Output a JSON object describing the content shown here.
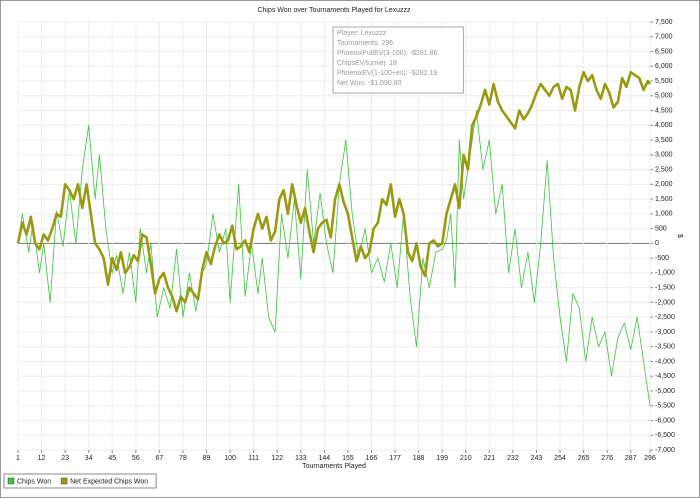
{
  "chart_data": {
    "type": "line",
    "title": "Chips Won over Tournaments Played for  Lexuzzz",
    "x_label": "Tournaments Played",
    "y_label": "$",
    "annotations": [
      "Player: Lexuzzz",
      "Tournaments: 296",
      "PhoenixPullEV(3-100): -$281.86",
      "ChipsEV/turniej: 18",
      "PhoenixEV(1-100+es): -$282.19",
      "Net Won: -$1,090.80"
    ],
    "legend": "bottom-left",
    "grid": true,
    "xlim": [
      1,
      296
    ],
    "xticks": [
      1,
      12,
      23,
      34,
      45,
      56,
      67,
      78,
      89,
      100,
      111,
      122,
      133,
      144,
      155,
      166,
      177,
      188,
      199,
      210,
      221,
      232,
      243,
      254,
      265,
      276,
      287,
      296
    ],
    "ylim": [
      -7000,
      7500
    ],
    "yticks": [
      {
        "value": -7000,
        "label": "-7,000"
      },
      {
        "value": -6500,
        "label": "-6,500"
      },
      {
        "value": -6000,
        "label": "-6,000"
      },
      {
        "value": -5500,
        "label": "-5,500"
      },
      {
        "value": -5000,
        "label": "-5,000"
      },
      {
        "value": -4500,
        "label": "-4,500"
      },
      {
        "value": -4000,
        "label": "-4,000"
      },
      {
        "value": -3500,
        "label": "-3,500"
      },
      {
        "value": -3000,
        "label": "-3,000"
      },
      {
        "value": -2500,
        "label": "-2,500"
      },
      {
        "value": -2000,
        "label": "-2,000"
      },
      {
        "value": -1500,
        "label": "-1,500"
      },
      {
        "value": -1000,
        "label": "-1,000"
      },
      -500,
      0,
      500,
      {
        "value": 1000,
        "label": "1,000"
      },
      {
        "value": 1500,
        "label": "1,500"
      },
      {
        "value": 2000,
        "label": "2,000"
      },
      {
        "value": 2500,
        "label": "2,500"
      },
      {
        "value": 3000,
        "label": "3,000"
      },
      {
        "value": 3500,
        "label": "3,500"
      },
      {
        "value": 4000,
        "label": "4,000"
      },
      {
        "value": 4500,
        "label": "4,500"
      },
      {
        "value": 5000,
        "label": "5,000"
      },
      {
        "value": 5500,
        "label": "5,500"
      },
      {
        "value": 6000,
        "label": "6,000"
      },
      {
        "value": 6500,
        "label": "6,500"
      },
      {
        "value": 7000,
        "label": "7,000"
      },
      {
        "value": 7500,
        "label": "7,500"
      }
    ],
    "series": [
      {
        "name": "Chips Won",
        "color": "#3cc33c",
        "width": 0.8,
        "x": [
          1,
          3,
          6,
          8,
          11,
          13,
          16,
          19,
          22,
          25,
          28,
          31,
          34,
          37,
          39,
          42,
          45,
          47,
          50,
          53,
          56,
          58,
          61,
          63,
          66,
          69,
          72,
          75,
          78,
          81,
          84,
          87,
          89,
          92,
          95,
          98,
          100,
          102,
          104,
          107,
          110,
          113,
          115,
          118,
          121,
          124,
          127,
          130,
          133,
          136,
          139,
          142,
          145,
          148,
          151,
          154,
          157,
          160,
          163,
          166,
          169,
          172,
          175,
          178,
          181,
          184,
          187,
          190,
          193,
          196,
          199,
          201,
          203,
          205,
          207,
          209,
          212,
          215,
          218,
          221,
          224,
          227,
          230,
          233,
          236,
          239,
          242,
          245,
          248,
          251,
          254,
          257,
          260,
          263,
          266,
          269,
          272,
          275,
          278,
          281,
          284,
          287,
          290,
          293,
          296
        ],
        "values": [
          0,
          1000,
          -300,
          700,
          -1000,
          0,
          -2000,
          1100,
          -100,
          1800,
          0,
          2500,
          4000,
          1500,
          3000,
          500,
          -1000,
          -400,
          -1700,
          -300,
          -2000,
          500,
          -1000,
          0,
          -2500,
          -1500,
          -2200,
          -200,
          -2500,
          -1000,
          -2300,
          -1000,
          -700,
          1000,
          -300,
          500,
          -2000,
          0,
          2000,
          -1800,
          0,
          -1700,
          -500,
          -2500,
          -3000,
          1000,
          -500,
          1500,
          -1200,
          2500,
          0,
          1700,
          0,
          -1000,
          2000,
          3500,
          1000,
          -500,
          500,
          -1000,
          -500,
          -1300,
          0,
          -1500,
          1000,
          -1800,
          -3500,
          -500,
          -1500,
          -300,
          -200,
          100,
          1000,
          -1500,
          3500,
          1500,
          3000,
          4500,
          2500,
          3500,
          1000,
          2000,
          -1000,
          500,
          -1500,
          -300,
          -2000,
          0,
          2800,
          -500,
          -2500,
          -4000,
          -1700,
          -2200,
          -4000,
          -2500,
          -3500,
          -3000,
          -4500,
          -3200,
          -2700,
          -3600,
          -2500,
          -4000,
          -5500
        ]
      },
      {
        "name": "Net Expected Chips Won",
        "color": "#9a9a12",
        "width": 2.6,
        "x": [
          1,
          3,
          5,
          7,
          9,
          11,
          13,
          15,
          17,
          19,
          21,
          23,
          25,
          27,
          29,
          31,
          33,
          35,
          37,
          39,
          41,
          43,
          45,
          47,
          49,
          51,
          53,
          55,
          57,
          59,
          61,
          63,
          65,
          67,
          69,
          71,
          73,
          75,
          77,
          79,
          81,
          83,
          85,
          87,
          89,
          91,
          93,
          95,
          97,
          99,
          101,
          103,
          105,
          107,
          109,
          111,
          113,
          115,
          117,
          119,
          121,
          123,
          125,
          127,
          129,
          131,
          133,
          135,
          137,
          139,
          141,
          143,
          145,
          147,
          149,
          151,
          153,
          155,
          157,
          159,
          161,
          163,
          165,
          167,
          169,
          171,
          173,
          175,
          177,
          179,
          181,
          183,
          185,
          187,
          189,
          191,
          193,
          195,
          197,
          199,
          201,
          203,
          205,
          207,
          209,
          211,
          213,
          215,
          217,
          219,
          221,
          223,
          225,
          227,
          229,
          231,
          233,
          235,
          237,
          239,
          241,
          243,
          245,
          247,
          249,
          251,
          253,
          255,
          257,
          259,
          261,
          263,
          265,
          267,
          269,
          271,
          273,
          275,
          277,
          279,
          281,
          283,
          285,
          287,
          289,
          291,
          293,
          295,
          296
        ],
        "values": [
          0,
          700,
          300,
          900,
          0,
          -200,
          300,
          100,
          500,
          1000,
          900,
          2000,
          1800,
          1500,
          2000,
          1200,
          2000,
          1000,
          0,
          -200,
          -500,
          -1400,
          -500,
          -900,
          -300,
          -1000,
          -800,
          -400,
          -600,
          300,
          200,
          -700,
          -1700,
          -1200,
          -1000,
          -1500,
          -1800,
          -2300,
          -1800,
          -2000,
          -1500,
          -1700,
          -1900,
          -900,
          -300,
          -700,
          -100,
          300,
          0,
          100,
          600,
          -200,
          -100,
          100,
          -300,
          500,
          1000,
          500,
          900,
          100,
          400,
          1500,
          1800,
          1000,
          2000,
          1300,
          700,
          1200,
          400,
          -300,
          500,
          700,
          800,
          200,
          1500,
          2000,
          1400,
          1000,
          200,
          -600,
          -100,
          -500,
          -300,
          500,
          700,
          1500,
          1300,
          2000,
          900,
          1500,
          1000,
          -300,
          -600,
          0,
          -800,
          -1100,
          0,
          100,
          -100,
          0,
          1000,
          1500,
          2000,
          1200,
          3000,
          2500,
          4000,
          4300,
          4700,
          5200,
          4700,
          5400,
          4800,
          4500,
          4300,
          4100,
          3900,
          4500,
          4200,
          4400,
          4700,
          5100,
          5400,
          5200,
          5000,
          5300,
          5400,
          4900,
          5300,
          5200,
          4500,
          5300,
          5800,
          5500,
          5700,
          5200,
          4900,
          5400,
          5100,
          4600,
          4800,
          5600,
          5300,
          5800,
          5700,
          5600,
          5200,
          5500,
          5400
        ]
      }
    ]
  }
}
